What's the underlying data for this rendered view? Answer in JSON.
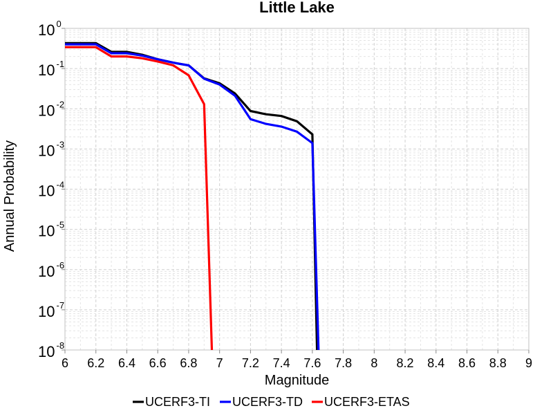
{
  "chart_data": {
    "type": "line",
    "title": "Little Lake",
    "xlabel": "Magnitude",
    "ylabel": "Annual Probability",
    "xlim": [
      6,
      9
    ],
    "ylim": [
      1e-08,
      1
    ],
    "yscale": "log",
    "grid": true,
    "legend_placement": "bottom",
    "x_ticks": [
      "6",
      "6.2",
      "6.4",
      "6.6",
      "6.8",
      "7",
      "7.2",
      "7.4",
      "7.6",
      "7.8",
      "8",
      "8.2",
      "8.4",
      "8.6",
      "8.8",
      "9"
    ],
    "y_ticks": [
      {
        "base": "10",
        "exp": "0"
      },
      {
        "base": "10",
        "exp": "-1"
      },
      {
        "base": "10",
        "exp": "-2"
      },
      {
        "base": "10",
        "exp": "-3"
      },
      {
        "base": "10",
        "exp": "-4"
      },
      {
        "base": "10",
        "exp": "-5"
      },
      {
        "base": "10",
        "exp": "-6"
      },
      {
        "base": "10",
        "exp": "-7"
      },
      {
        "base": "10",
        "exp": "-8"
      }
    ],
    "series": [
      {
        "name": "UCERF3-TI",
        "color": "#000000",
        "x": [
          6.0,
          6.2,
          6.3,
          6.4,
          6.5,
          6.6,
          6.7,
          6.8,
          6.9,
          7.0,
          7.1,
          7.2,
          7.3,
          7.4,
          7.5,
          7.6,
          7.63
        ],
        "y": [
          0.43,
          0.43,
          0.26,
          0.26,
          0.22,
          0.17,
          0.14,
          0.12,
          0.057,
          0.043,
          0.024,
          0.0088,
          0.0073,
          0.0066,
          0.0049,
          0.0023,
          1e-08
        ]
      },
      {
        "name": "UCERF3-TD",
        "color": "#0000ff",
        "x": [
          6.0,
          6.2,
          6.3,
          6.4,
          6.5,
          6.6,
          6.7,
          6.8,
          6.9,
          7.0,
          7.1,
          7.2,
          7.3,
          7.4,
          7.5,
          7.6,
          7.64
        ],
        "y": [
          0.4,
          0.4,
          0.24,
          0.24,
          0.21,
          0.17,
          0.14,
          0.12,
          0.056,
          0.04,
          0.021,
          0.0055,
          0.0042,
          0.0036,
          0.0027,
          0.0014,
          1e-08
        ]
      },
      {
        "name": "UCERF3-ETAS",
        "color": "#ff0000",
        "x": [
          6.0,
          6.2,
          6.3,
          6.4,
          6.5,
          6.6,
          6.7,
          6.8,
          6.9,
          6.95
        ],
        "y": [
          0.34,
          0.34,
          0.2,
          0.2,
          0.18,
          0.15,
          0.12,
          0.068,
          0.013,
          1e-08
        ]
      }
    ]
  }
}
